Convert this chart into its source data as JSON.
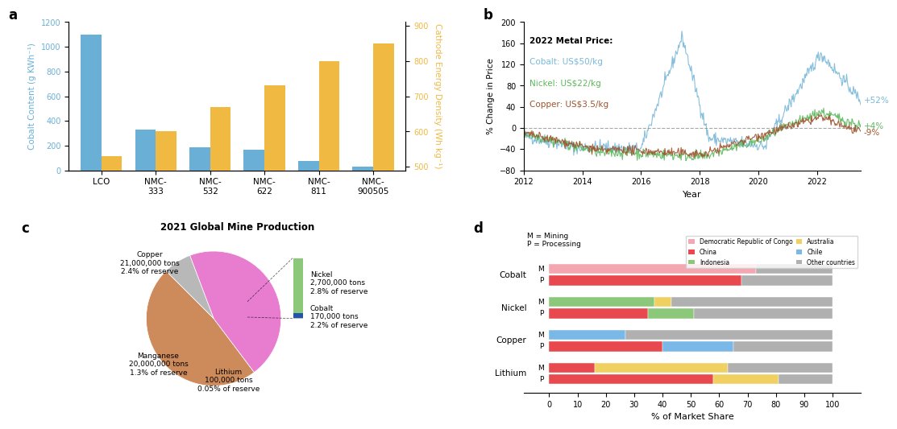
{
  "panel_a": {
    "categories": [
      "LCO",
      "NMC-\n333",
      "NMC-\n532",
      "NMC-\n622",
      "NMC-\n811",
      "NMC-\n900505"
    ],
    "cobalt_content": [
      1100,
      330,
      185,
      165,
      75,
      30
    ],
    "energy_density": [
      530,
      600,
      670,
      730,
      800,
      850
    ],
    "bar_color_blue": "#6aafd6",
    "bar_color_gold": "#f0b942",
    "ylabel_left": "Cobalt Content (g KWh⁻¹)",
    "ylabel_right": "Cathode Energy Density (Wh kg⁻¹)",
    "ylim_left": [
      0,
      1200
    ],
    "ylim_right": [
      490,
      910
    ],
    "label": "a"
  },
  "panel_b": {
    "xlabel": "Year",
    "ylabel": "% Change in Price",
    "ylim": [
      -80,
      200
    ],
    "yticks": [
      -80,
      -40,
      0,
      40,
      80,
      120,
      160,
      200
    ],
    "xticks": [
      2012,
      2014,
      2016,
      2018,
      2020,
      2022
    ],
    "cobalt_color": "#7ab8d9",
    "nickel_color": "#5cb85c",
    "copper_color": "#a0522d",
    "label_cobalt": "+52%",
    "label_nickel": "+4%",
    "label_copper": "-9%",
    "label": "b"
  },
  "panel_c": {
    "title": "2021 Global Mine Production",
    "label": "c"
  },
  "panel_d": {
    "metals": [
      "Cobalt",
      "Nickel",
      "Copper",
      "Lithium"
    ],
    "legend_labels": [
      "Democratic Republic of Congo",
      "China",
      "Indonesia",
      "Australia",
      "Chile",
      "Other countries"
    ],
    "legend_colors": [
      "#f4a7b0",
      "#e8494f",
      "#8bc87a",
      "#f0d060",
      "#7ab8e8",
      "#b0b0b0"
    ],
    "cobalt_M": [
      73,
      0,
      0,
      0,
      0,
      27
    ],
    "cobalt_P": [
      0,
      68,
      0,
      0,
      0,
      32
    ],
    "nickel_M": [
      0,
      0,
      37,
      6,
      0,
      57
    ],
    "nickel_P": [
      0,
      35,
      16,
      0,
      0,
      49
    ],
    "copper_M": [
      0,
      0,
      0,
      0,
      27,
      73
    ],
    "copper_P": [
      0,
      40,
      0,
      0,
      25,
      35
    ],
    "lithium_M": [
      0,
      16,
      0,
      47,
      0,
      37
    ],
    "lithium_P": [
      0,
      58,
      0,
      23,
      0,
      19
    ],
    "xlabel": "% of Market Share",
    "label": "d"
  }
}
